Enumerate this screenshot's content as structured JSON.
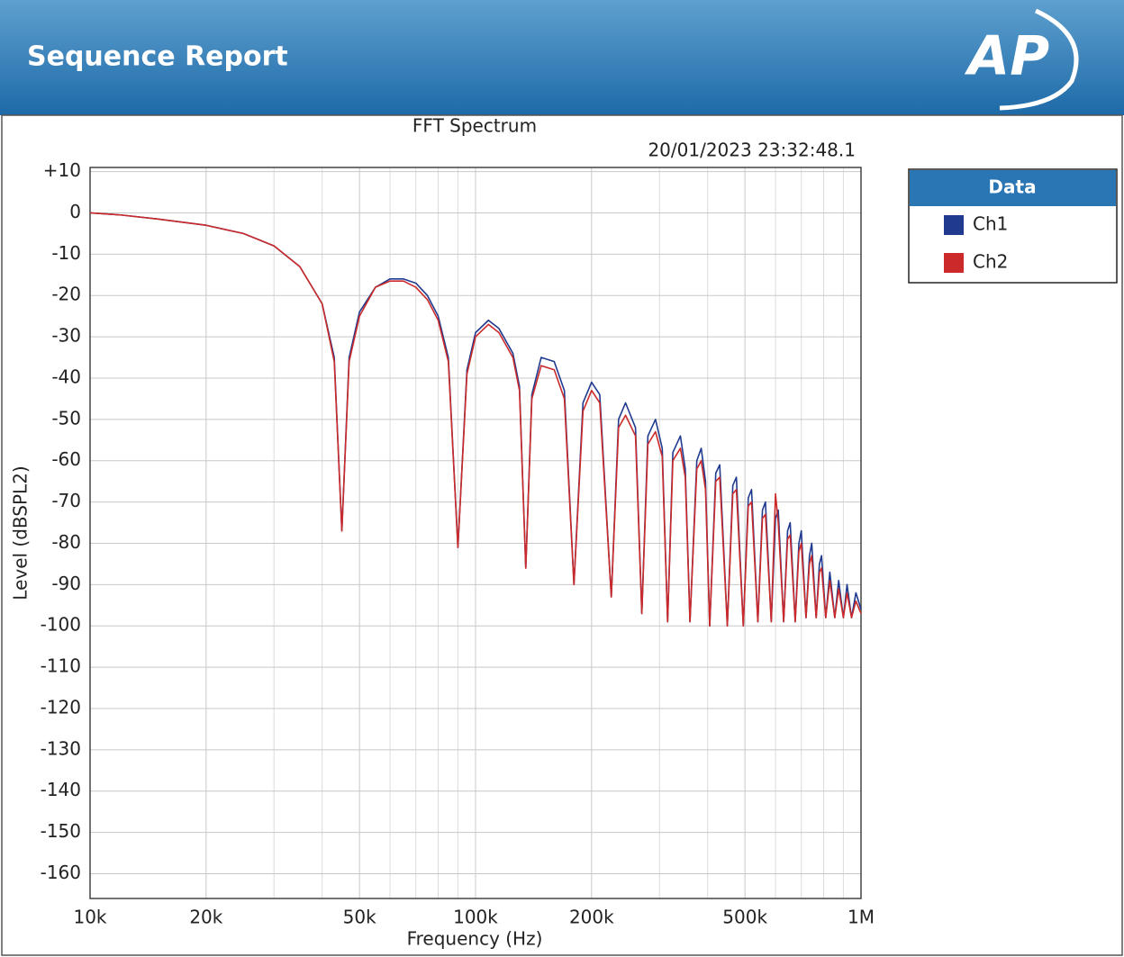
{
  "header": {
    "title": "Sequence Report",
    "logo": "AP"
  },
  "chart_data": {
    "type": "line",
    "title": "FFT Spectrum",
    "subtitle": "20/01/2023 23:32:48.1",
    "logo": "AP",
    "xlabel": "Frequency (Hz)",
    "ylabel": "Level (dBSPL2)",
    "log_x": true,
    "grid": true,
    "legend_title": "Data",
    "xlim": [
      10000,
      1000000
    ],
    "ylim": [
      -166,
      11
    ],
    "xticks": [
      {
        "value": 10000,
        "label": "10k"
      },
      {
        "value": 20000,
        "label": "20k"
      },
      {
        "value": 50000,
        "label": "50k"
      },
      {
        "value": 100000,
        "label": "100k"
      },
      {
        "value": 200000,
        "label": "200k"
      },
      {
        "value": 500000,
        "label": "500k"
      },
      {
        "value": 1000000,
        "label": "1M"
      }
    ],
    "xminorticks": [
      30000,
      40000,
      60000,
      70000,
      80000,
      90000,
      300000,
      400000,
      600000,
      700000,
      800000,
      900000
    ],
    "yticks": [
      {
        "value": 10,
        "label": "+10"
      },
      0,
      -10,
      -20,
      -30,
      -40,
      -50,
      -60,
      -70,
      -80,
      -90,
      -100,
      -110,
      -120,
      -130,
      -140,
      -150,
      -160
    ],
    "x": [
      10000,
      12000,
      15000,
      20000,
      25000,
      30000,
      35000,
      40000,
      43000,
      45000,
      47000,
      50000,
      55000,
      60000,
      65000,
      70000,
      75000,
      80000,
      85000,
      90000,
      95000,
      100000,
      108000,
      115000,
      125000,
      130000,
      135000,
      140000,
      148000,
      160000,
      170000,
      180000,
      190000,
      200000,
      210000,
      225000,
      235000,
      245000,
      260000,
      270000,
      280000,
      293000,
      305000,
      315000,
      325000,
      340000,
      350000,
      360000,
      375000,
      385000,
      395000,
      405000,
      420000,
      430000,
      450000,
      465000,
      475000,
      495000,
      510000,
      520000,
      540000,
      555000,
      565000,
      585000,
      600000,
      610000,
      630000,
      645000,
      655000,
      675000,
      690000,
      700000,
      720000,
      735000,
      745000,
      765000,
      780000,
      790000,
      810000,
      830000,
      855000,
      875000,
      900000,
      920000,
      945000,
      970000,
      1000000
    ],
    "series": [
      {
        "name": "Ch1",
        "color": "#1f3a8f",
        "values": [
          0,
          -0.5,
          -1.5,
          -3,
          -5,
          -8,
          -13,
          -22,
          -35,
          -77,
          -35,
          -24,
          -18,
          -16,
          -16,
          -17,
          -20,
          -25,
          -35,
          -81,
          -38,
          -29,
          -26,
          -28,
          -34,
          -42,
          -86,
          -44,
          -35,
          -36,
          -43,
          -90,
          -46,
          -41,
          -44,
          -93,
          -50,
          -46,
          -52,
          -97,
          -54,
          -50,
          -57,
          -99,
          -58,
          -54,
          -62,
          -99,
          -60,
          -57,
          -65,
          -100,
          -63,
          -61,
          -100,
          -66,
          -64,
          -100,
          -69,
          -67,
          -99,
          -72,
          -70,
          -99,
          -74,
          -72,
          -99,
          -77,
          -75,
          -99,
          -80,
          -77,
          -98,
          -83,
          -80,
          -98,
          -85,
          -83,
          -98,
          -87,
          -98,
          -89,
          -98,
          -90,
          -98,
          -92,
          -96
        ]
      },
      {
        "name": "Ch2",
        "color": "#cc2a2a",
        "values": [
          0,
          -0.5,
          -1.5,
          -3,
          -5,
          -8,
          -13,
          -22,
          -36,
          -77,
          -36,
          -25,
          -18,
          -16.5,
          -16.5,
          -18,
          -21,
          -26,
          -36,
          -81,
          -39,
          -30,
          -27,
          -29,
          -35,
          -43,
          -86,
          -45,
          -37,
          -38,
          -45,
          -90,
          -48,
          -43,
          -46,
          -93,
          -52,
          -49,
          -54,
          -97,
          -56,
          -53,
          -59,
          -99,
          -60,
          -57,
          -64,
          -99,
          -62,
          -60,
          -67,
          -100,
          -65,
          -64,
          -100,
          -68,
          -67,
          -100,
          -71,
          -70,
          -99,
          -74,
          -73,
          -99,
          -68,
          -75,
          -99,
          -79,
          -78,
          -99,
          -82,
          -80,
          -98,
          -85,
          -83,
          -98,
          -87,
          -86,
          -98,
          -89,
          -98,
          -91,
          -98,
          -92,
          -98,
          -94,
          -97
        ]
      }
    ]
  }
}
